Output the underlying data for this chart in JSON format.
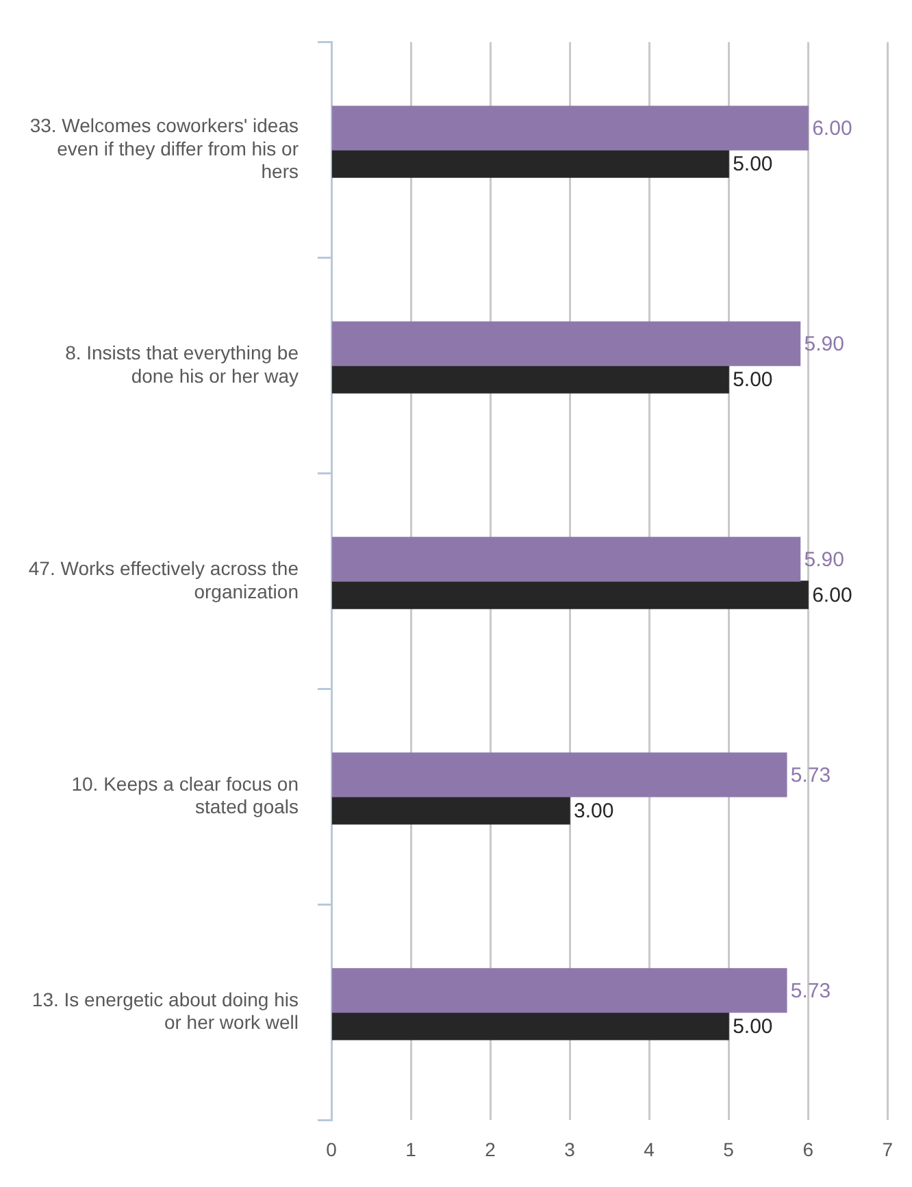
{
  "chart_data": {
    "type": "bar",
    "orientation": "horizontal",
    "categories": [
      "33. Welcomes coworkers' ideas even if they differ from his or hers",
      "8. Insists that everything be done his or her way",
      "47. Works effectively across the organization",
      "10. Keeps a clear focus on stated goals",
      "13. Is energetic about doing his or her work well"
    ],
    "series": [
      {
        "color": "#8e78ab",
        "values": [
          6.0,
          5.9,
          5.9,
          5.73,
          5.73
        ],
        "value_labels": [
          "6.00",
          "5.90",
          "5.90",
          "5.73",
          "5.73"
        ]
      },
      {
        "color": "#262626",
        "values": [
          5.0,
          5.0,
          6.0,
          3.0,
          5.0
        ],
        "value_labels": [
          "5.00",
          "5.00",
          "6.00",
          "3.00",
          "5.00"
        ]
      }
    ],
    "xlim": [
      0,
      7
    ],
    "xticks": [
      0,
      1,
      2,
      3,
      4,
      5,
      6,
      7
    ],
    "grid": "x",
    "legend": false
  }
}
